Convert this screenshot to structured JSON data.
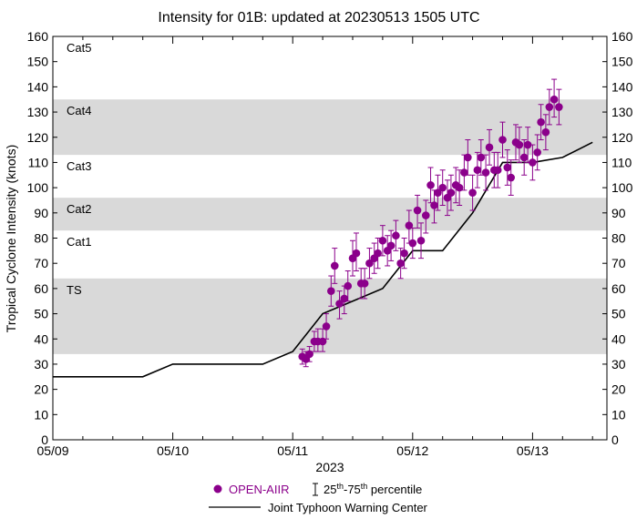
{
  "chart_data": {
    "type": "scatter",
    "title": "Intensity for 01B: updated at 20230513 1505 UTC",
    "xlabel": "2023",
    "ylabel": "Tropical Cyclone Intensity (knots)",
    "x_unit": "days since 05/09 00 UTC",
    "xlim": [
      0,
      4.62
    ],
    "ylim": [
      0,
      160
    ],
    "x_ticks": [
      {
        "x": 0,
        "label": "05/09"
      },
      {
        "x": 1,
        "label": "05/10"
      },
      {
        "x": 2,
        "label": "05/11"
      },
      {
        "x": 3,
        "label": "05/12"
      },
      {
        "x": 4,
        "label": "05/13"
      }
    ],
    "y_ticks": [
      0,
      10,
      20,
      30,
      40,
      50,
      60,
      70,
      80,
      90,
      100,
      110,
      120,
      130,
      140,
      150,
      160
    ],
    "category_bands": [
      {
        "label": "TS",
        "from": 34,
        "to": 64,
        "shaded": true
      },
      {
        "label": "Cat1",
        "from": 64,
        "to": 83,
        "shaded": false
      },
      {
        "label": "Cat2",
        "from": 83,
        "to": 96,
        "shaded": true
      },
      {
        "label": "Cat3",
        "from": 96,
        "to": 113,
        "shaded": false
      },
      {
        "label": "Cat4",
        "from": 113,
        "to": 135,
        "shaded": true
      },
      {
        "label": "Cat5",
        "from": 135,
        "to": 160,
        "shaded": false
      }
    ],
    "series": [
      {
        "name": "OPEN-AIIR",
        "kind": "points_with_percentile_bars",
        "color": "#8B008B",
        "points": [
          {
            "x": 2.08,
            "y": 33,
            "lo": 30,
            "hi": 36
          },
          {
            "x": 2.11,
            "y": 32,
            "lo": 29,
            "hi": 35
          },
          {
            "x": 2.14,
            "y": 34,
            "lo": 31,
            "hi": 37
          },
          {
            "x": 2.18,
            "y": 39,
            "lo": 35,
            "hi": 43
          },
          {
            "x": 2.21,
            "y": 39,
            "lo": 35,
            "hi": 44
          },
          {
            "x": 2.25,
            "y": 39,
            "lo": 35,
            "hi": 44
          },
          {
            "x": 2.28,
            "y": 45,
            "lo": 40,
            "hi": 50
          },
          {
            "x": 2.32,
            "y": 59,
            "lo": 53,
            "hi": 65
          },
          {
            "x": 2.35,
            "y": 69,
            "lo": 62,
            "hi": 76
          },
          {
            "x": 2.39,
            "y": 54,
            "lo": 48,
            "hi": 59
          },
          {
            "x": 2.43,
            "y": 56,
            "lo": 50,
            "hi": 61
          },
          {
            "x": 2.46,
            "y": 61,
            "lo": 55,
            "hi": 67
          },
          {
            "x": 2.5,
            "y": 72,
            "lo": 65,
            "hi": 79
          },
          {
            "x": 2.53,
            "y": 74,
            "lo": 67,
            "hi": 82
          },
          {
            "x": 2.57,
            "y": 62,
            "lo": 56,
            "hi": 68
          },
          {
            "x": 2.6,
            "y": 62,
            "lo": 56,
            "hi": 68
          },
          {
            "x": 2.64,
            "y": 70,
            "lo": 64,
            "hi": 76
          },
          {
            "x": 2.68,
            "y": 72,
            "lo": 66,
            "hi": 78
          },
          {
            "x": 2.71,
            "y": 74,
            "lo": 68,
            "hi": 80
          },
          {
            "x": 2.75,
            "y": 79,
            "lo": 73,
            "hi": 85
          },
          {
            "x": 2.79,
            "y": 75,
            "lo": 69,
            "hi": 81
          },
          {
            "x": 2.82,
            "y": 77,
            "lo": 71,
            "hi": 83
          },
          {
            "x": 2.86,
            "y": 81,
            "lo": 75,
            "hi": 87
          },
          {
            "x": 2.9,
            "y": 70,
            "lo": 64,
            "hi": 76
          },
          {
            "x": 2.93,
            "y": 74,
            "lo": 68,
            "hi": 80
          },
          {
            "x": 2.97,
            "y": 85,
            "lo": 78,
            "hi": 91
          },
          {
            "x": 3.0,
            "y": 78,
            "lo": 72,
            "hi": 84
          },
          {
            "x": 3.04,
            "y": 91,
            "lo": 84,
            "hi": 97
          },
          {
            "x": 3.07,
            "y": 79,
            "lo": 72,
            "hi": 86
          },
          {
            "x": 3.11,
            "y": 89,
            "lo": 82,
            "hi": 95
          },
          {
            "x": 3.15,
            "y": 101,
            "lo": 94,
            "hi": 108
          },
          {
            "x": 3.18,
            "y": 93,
            "lo": 86,
            "hi": 99
          },
          {
            "x": 3.21,
            "y": 98,
            "lo": 91,
            "hi": 105
          },
          {
            "x": 3.25,
            "y": 100,
            "lo": 93,
            "hi": 107
          },
          {
            "x": 3.29,
            "y": 96,
            "lo": 89,
            "hi": 103
          },
          {
            "x": 3.32,
            "y": 98,
            "lo": 91,
            "hi": 105
          },
          {
            "x": 3.36,
            "y": 101,
            "lo": 94,
            "hi": 108
          },
          {
            "x": 3.39,
            "y": 100,
            "lo": 93,
            "hi": 107
          },
          {
            "x": 3.43,
            "y": 106,
            "lo": 99,
            "hi": 113
          },
          {
            "x": 3.46,
            "y": 112,
            "lo": 105,
            "hi": 119
          },
          {
            "x": 3.5,
            "y": 98,
            "lo": 91,
            "hi": 105
          },
          {
            "x": 3.54,
            "y": 107,
            "lo": 100,
            "hi": 114
          },
          {
            "x": 3.57,
            "y": 112,
            "lo": 105,
            "hi": 119
          },
          {
            "x": 3.61,
            "y": 106,
            "lo": 99,
            "hi": 113
          },
          {
            "x": 3.64,
            "y": 116,
            "lo": 109,
            "hi": 123
          },
          {
            "x": 3.68,
            "y": 107,
            "lo": 100,
            "hi": 114
          },
          {
            "x": 3.71,
            "y": 107,
            "lo": 100,
            "hi": 114
          },
          {
            "x": 3.75,
            "y": 119,
            "lo": 112,
            "hi": 126
          },
          {
            "x": 3.79,
            "y": 108,
            "lo": 101,
            "hi": 115
          },
          {
            "x": 3.82,
            "y": 104,
            "lo": 97,
            "hi": 111
          },
          {
            "x": 3.86,
            "y": 118,
            "lo": 111,
            "hi": 125
          },
          {
            "x": 3.89,
            "y": 117,
            "lo": 110,
            "hi": 124
          },
          {
            "x": 3.93,
            "y": 112,
            "lo": 105,
            "hi": 119
          },
          {
            "x": 3.96,
            "y": 117,
            "lo": 110,
            "hi": 124
          },
          {
            "x": 4.0,
            "y": 110,
            "lo": 103,
            "hi": 117
          },
          {
            "x": 4.04,
            "y": 114,
            "lo": 107,
            "hi": 121
          },
          {
            "x": 4.07,
            "y": 126,
            "lo": 119,
            "hi": 133
          },
          {
            "x": 4.11,
            "y": 122,
            "lo": 115,
            "hi": 129
          },
          {
            "x": 4.14,
            "y": 132,
            "lo": 125,
            "hi": 139
          },
          {
            "x": 4.18,
            "y": 135,
            "lo": 128,
            "hi": 143
          },
          {
            "x": 4.22,
            "y": 132,
            "lo": 125,
            "hi": 139
          }
        ]
      },
      {
        "name": "Joint Typhoon Warning Center",
        "kind": "line",
        "color": "#000000",
        "x": [
          0,
          0.75,
          1.0,
          1.75,
          2.0,
          2.25,
          2.5,
          2.75,
          3.0,
          3.25,
          3.5,
          3.75,
          4.0,
          4.25,
          4.5
        ],
        "y": [
          25,
          25,
          30,
          30,
          35,
          50,
          55,
          60,
          75,
          75,
          90,
          110,
          110,
          112,
          118
        ]
      }
    ],
    "legend": {
      "placement": "bottom",
      "percentile_label": "25th-75th percentile",
      "percentile_label_base1": "25",
      "percentile_label_sup1": "th",
      "percentile_label_mid": "-75",
      "percentile_label_sup2": "th",
      "percentile_label_tail": " percentile"
    }
  }
}
